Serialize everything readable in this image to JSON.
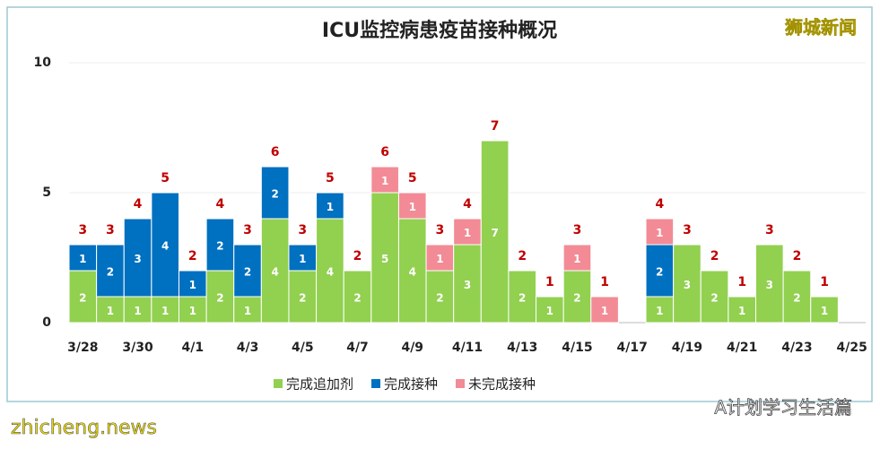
{
  "chart_data": {
    "type": "stacked_bar",
    "title": "ICU监控病患疫苗接种概况",
    "categories": [
      "3/28",
      null,
      "3/30",
      null,
      "4/1",
      null,
      "4/3",
      null,
      "4/5",
      null,
      "4/7",
      null,
      "4/9",
      null,
      "4/11",
      null,
      "4/13",
      null,
      "4/15",
      null,
      "4/17",
      null,
      "4/19",
      null,
      "4/21",
      null,
      "4/23",
      null,
      "4/25"
    ],
    "series": [
      {
        "name": "完成追加剂",
        "color": "#92d050",
        "values": [
          2,
          1,
          1,
          1,
          1,
          2,
          1,
          4,
          2,
          4,
          2,
          5,
          4,
          2,
          3,
          7,
          2,
          1,
          2,
          null,
          null,
          1,
          3,
          2,
          1,
          3,
          2,
          1,
          null
        ]
      },
      {
        "name": "完成接种",
        "color": "#0070c0",
        "values": [
          1,
          2,
          3,
          4,
          1,
          2,
          2,
          2,
          1,
          1,
          null,
          null,
          null,
          null,
          null,
          null,
          null,
          null,
          null,
          null,
          null,
          2,
          null,
          null,
          null,
          null,
          null,
          null,
          null
        ]
      },
      {
        "name": "未完成接种",
        "color": "#f28b95",
        "values": [
          null,
          null,
          null,
          null,
          null,
          null,
          null,
          null,
          null,
          null,
          null,
          1,
          1,
          1,
          1,
          null,
          null,
          null,
          1,
          1,
          null,
          1,
          null,
          null,
          null,
          null,
          null,
          null,
          null
        ]
      }
    ],
    "totals": [
      3,
      3,
      4,
      5,
      2,
      4,
      3,
      6,
      3,
      5,
      2,
      6,
      5,
      3,
      4,
      7,
      2,
      1,
      3,
      1,
      null,
      4,
      3,
      2,
      1,
      3,
      2,
      1,
      null
    ],
    "ylim": [
      0,
      10
    ],
    "yticks": [
      0,
      5,
      10
    ],
    "grid": true,
    "legend": "bottom"
  },
  "watermarks": {
    "top_right": "狮城新闻",
    "bottom_left": "zhicheng.news",
    "bottom_right": "A计划学习生活篇"
  }
}
